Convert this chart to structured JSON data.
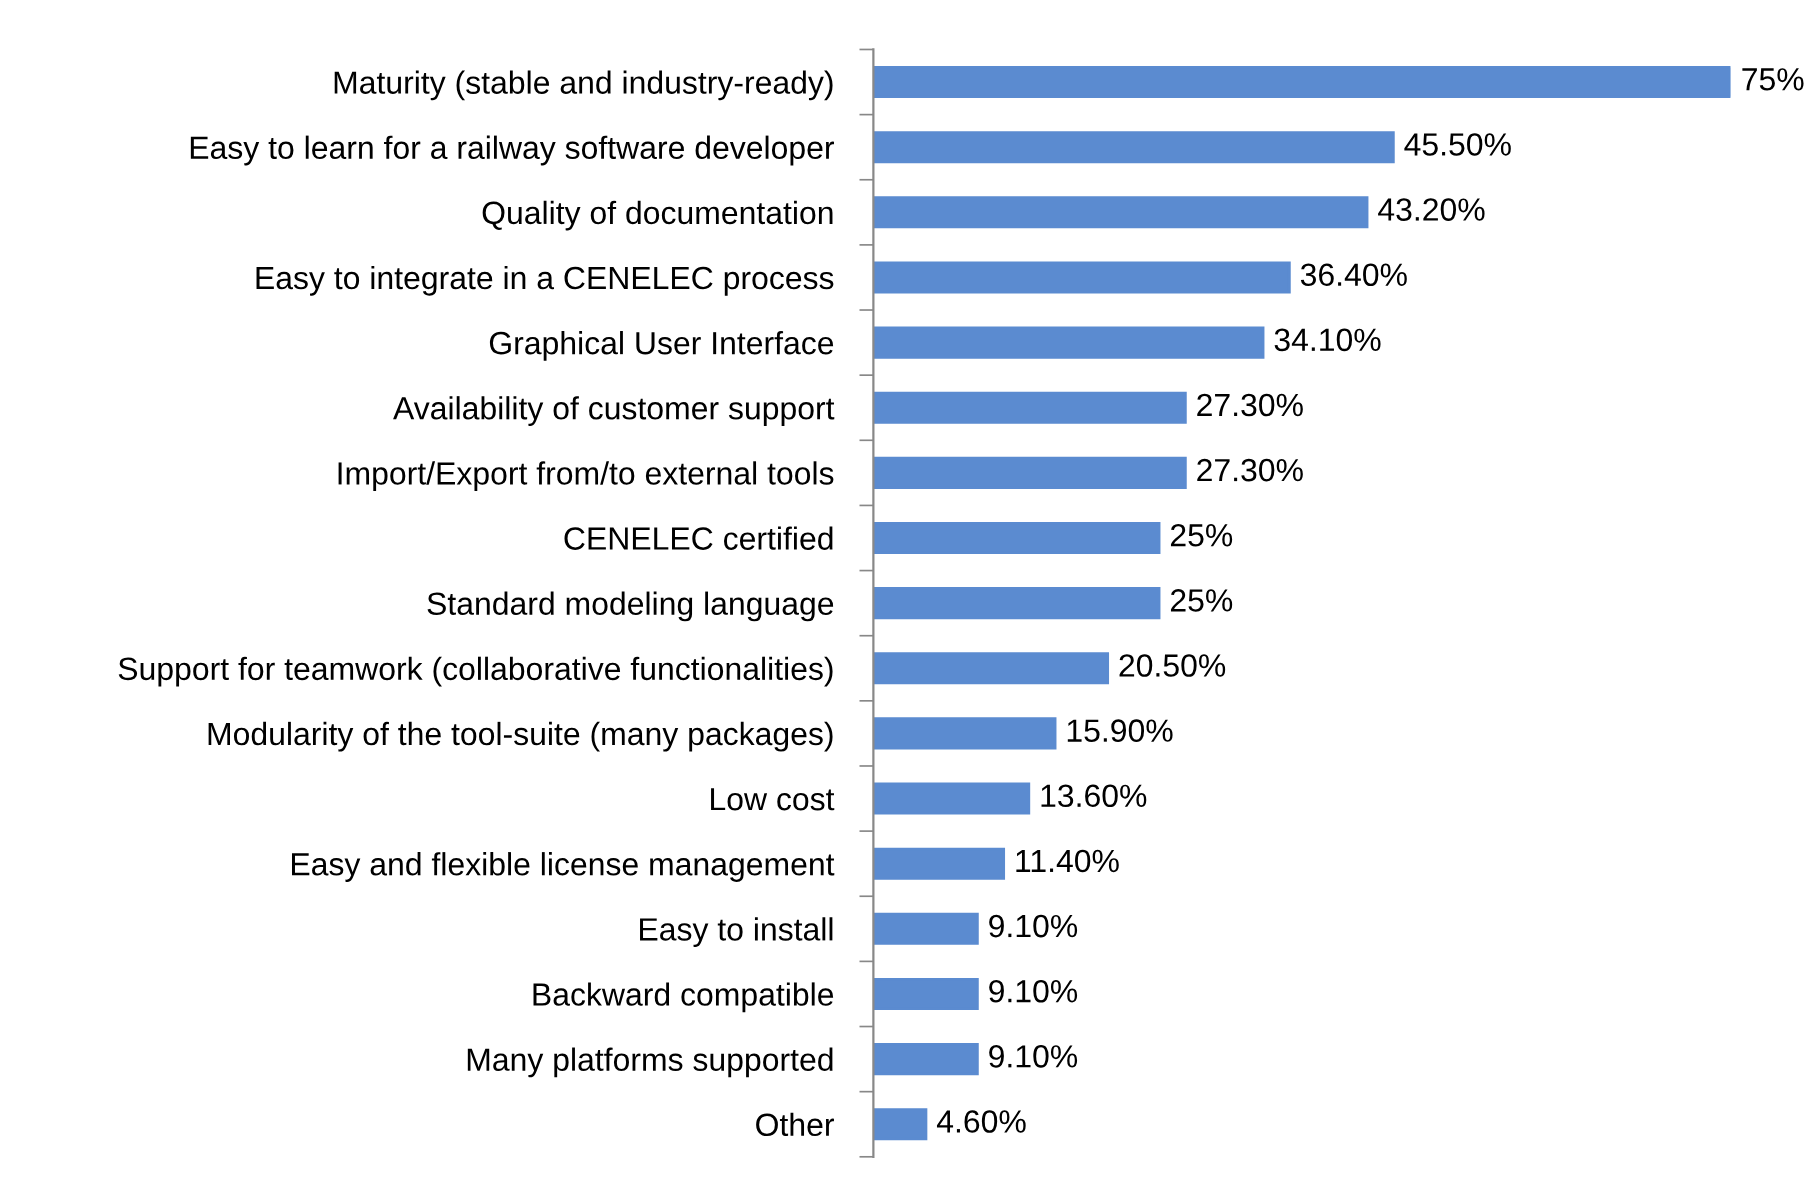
{
  "chart_data": {
    "type": "bar",
    "orientation": "horizontal",
    "categories": [
      "Maturity (stable and industry-ready)",
      "Easy to learn for a railway software developer",
      "Quality of documentation",
      "Easy to integrate in a CENELEC process",
      "Graphical User Interface",
      "Availability of customer support",
      "Import/Export from/to external tools",
      "CENELEC certified",
      "Standard modeling language",
      "Support for teamwork (collaborative functionalities)",
      "Modularity of the tool-suite (many packages)",
      "Low cost",
      "Easy and flexible license management",
      "Easy to install",
      "Backward compatible",
      "Many platforms supported",
      "Other"
    ],
    "values": [
      75,
      45.5,
      43.2,
      36.4,
      34.1,
      27.3,
      27.3,
      25,
      25,
      20.5,
      15.9,
      13.6,
      11.4,
      9.1,
      9.1,
      9.1,
      4.6
    ],
    "value_labels": [
      "75%",
      "45.50%",
      "43.20%",
      "36.40%",
      "34.10%",
      "27.30%",
      "27.30%",
      "25%",
      "25%",
      "20.50%",
      "15.90%",
      "13.60%",
      "11.40%",
      "9.10%",
      "9.10%",
      "9.10%",
      "4.60%"
    ],
    "color": "#5b8bd0",
    "data_labels": true,
    "grid": false,
    "legend": false
  }
}
